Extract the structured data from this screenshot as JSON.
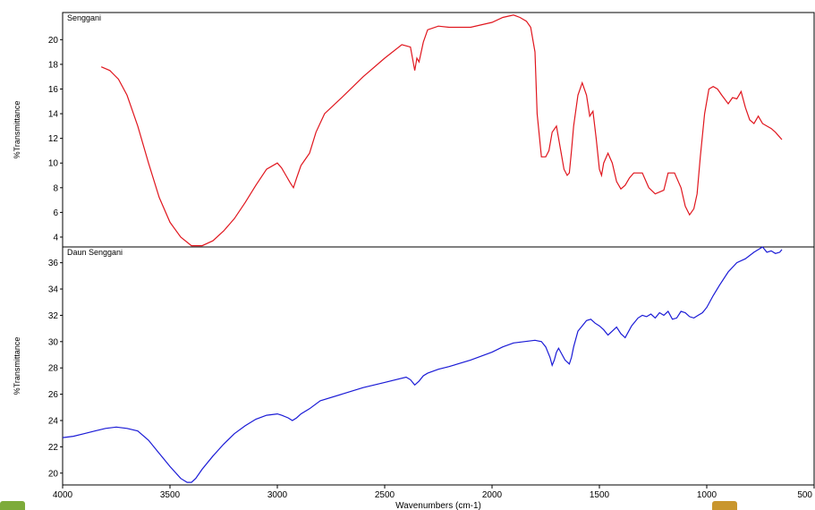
{
  "colors": {
    "frame": "#000000",
    "top_series": "#e0161e",
    "bottom_series": "#1a1ad6",
    "corner_left": "#7dab3a",
    "corner_right": "#c9962e"
  },
  "chart_data": [
    {
      "type": "line",
      "title": "Senggani",
      "ylabel": "%Transmittance",
      "xlabel": "",
      "xlim": [
        4000,
        500
      ],
      "ylim": [
        3.2,
        22.2
      ],
      "x_reversed": true,
      "grid": false,
      "y_ticks": [
        4,
        6,
        8,
        10,
        12,
        14,
        16,
        18,
        20
      ],
      "series": [
        {
          "x": [
            3820,
            3780,
            3740,
            3700,
            3650,
            3600,
            3550,
            3500,
            3450,
            3400,
            3350,
            3300,
            3250,
            3200,
            3150,
            3100,
            3050,
            3000,
            2980,
            2960,
            2940,
            2925,
            2910,
            2890,
            2870,
            2850,
            2820,
            2780,
            2700,
            2600,
            2500,
            2420,
            2380,
            2360,
            2350,
            2340,
            2320,
            2300,
            2250,
            2200,
            2100,
            2000,
            1950,
            1900,
            1870,
            1840,
            1820,
            1800,
            1790,
            1770,
            1750,
            1735,
            1720,
            1700,
            1680,
            1665,
            1650,
            1640,
            1630,
            1620,
            1600,
            1580,
            1560,
            1545,
            1530,
            1515,
            1500,
            1490,
            1480,
            1460,
            1440,
            1420,
            1400,
            1380,
            1360,
            1340,
            1300,
            1270,
            1240,
            1200,
            1180,
            1150,
            1120,
            1100,
            1080,
            1060,
            1045,
            1030,
            1010,
            990,
            970,
            950,
            930,
            900,
            880,
            860,
            840,
            820,
            800,
            780,
            760,
            740,
            720,
            700,
            680,
            660,
            650
          ],
          "values": [
            17.8,
            17.5,
            16.8,
            15.5,
            13,
            10,
            7.2,
            5.2,
            4,
            3.3,
            3.3,
            3.7,
            4.5,
            5.5,
            6.8,
            8.2,
            9.5,
            10,
            9.6,
            9,
            8.4,
            8,
            8.8,
            9.8,
            10.3,
            10.8,
            12.5,
            14,
            15.3,
            17,
            18.5,
            19.6,
            19.4,
            17.5,
            18.5,
            18.2,
            19.8,
            20.8,
            21.1,
            21,
            21,
            21.4,
            21.8,
            22,
            21.8,
            21.5,
            21,
            19,
            14,
            10.5,
            10.5,
            11,
            12.5,
            13,
            11,
            9.5,
            9,
            9.2,
            11,
            13,
            15.5,
            16.5,
            15.5,
            13.8,
            14.2,
            12,
            9.5,
            9,
            10,
            10.8,
            10,
            8.5,
            7.9,
            8.2,
            8.8,
            9.2,
            9.2,
            8,
            7.5,
            7.8,
            9.2,
            9.2,
            8,
            6.5,
            5.8,
            6.3,
            7.5,
            10.5,
            14,
            16,
            16.2,
            16,
            15.5,
            14.8,
            15.3,
            15.2,
            15.8,
            14.5,
            13.5,
            13.2,
            13.8,
            13.2,
            13,
            12.8,
            12.5,
            12.1,
            11.9
          ]
        }
      ]
    },
    {
      "type": "line",
      "title": "Daun Senggani",
      "ylabel": "%Transmittance",
      "xlabel": "Wavenumbers (cm-1)",
      "xlim": [
        4000,
        500
      ],
      "ylim": [
        19.1,
        37.2
      ],
      "x_reversed": true,
      "grid": false,
      "y_ticks": [
        20,
        22,
        24,
        26,
        28,
        30,
        32,
        34,
        36
      ],
      "x_ticks": [
        4000,
        3500,
        3000,
        2500,
        2000,
        1500,
        1000,
        500
      ],
      "series": [
        {
          "x": [
            4000,
            3950,
            3900,
            3850,
            3800,
            3750,
            3700,
            3650,
            3600,
            3550,
            3500,
            3450,
            3420,
            3400,
            3380,
            3350,
            3300,
            3250,
            3200,
            3150,
            3100,
            3050,
            3000,
            2980,
            2950,
            2930,
            2910,
            2890,
            2850,
            2800,
            2700,
            2600,
            2500,
            2400,
            2380,
            2360,
            2340,
            2320,
            2300,
            2250,
            2200,
            2100,
            2000,
            1950,
            1900,
            1850,
            1800,
            1770,
            1750,
            1730,
            1720,
            1710,
            1700,
            1690,
            1680,
            1660,
            1640,
            1630,
            1620,
            1600,
            1580,
            1560,
            1540,
            1520,
            1500,
            1480,
            1460,
            1440,
            1420,
            1400,
            1380,
            1350,
            1320,
            1300,
            1280,
            1260,
            1240,
            1220,
            1200,
            1180,
            1160,
            1140,
            1120,
            1100,
            1080,
            1060,
            1040,
            1020,
            1000,
            970,
            940,
            900,
            860,
            820,
            780,
            740,
            720,
            700,
            680,
            660,
            650
          ],
          "values": [
            22.7,
            22.8,
            23,
            23.2,
            23.4,
            23.5,
            23.4,
            23.2,
            22.5,
            21.5,
            20.5,
            19.6,
            19.3,
            19.3,
            19.6,
            20.3,
            21.3,
            22.2,
            23,
            23.6,
            24.1,
            24.4,
            24.5,
            24.4,
            24.2,
            24,
            24.2,
            24.5,
            24.9,
            25.5,
            26,
            26.5,
            26.9,
            27.3,
            27.1,
            26.7,
            27,
            27.4,
            27.6,
            27.9,
            28.1,
            28.6,
            29.2,
            29.6,
            29.9,
            30,
            30.1,
            30,
            29.6,
            28.8,
            28.2,
            28.6,
            29.2,
            29.5,
            29.2,
            28.6,
            28.3,
            28.8,
            29.6,
            30.8,
            31.2,
            31.6,
            31.7,
            31.4,
            31.2,
            30.9,
            30.5,
            30.8,
            31.1,
            30.6,
            30.3,
            31.2,
            31.8,
            32,
            31.9,
            32.1,
            31.8,
            32.2,
            32,
            32.3,
            31.7,
            31.8,
            32.3,
            32.2,
            31.9,
            31.8,
            32,
            32.2,
            32.6,
            33.5,
            34.3,
            35.3,
            36,
            36.3,
            36.8,
            37.2,
            36.8,
            36.9,
            36.7,
            36.8,
            37
          ]
        }
      ]
    }
  ]
}
